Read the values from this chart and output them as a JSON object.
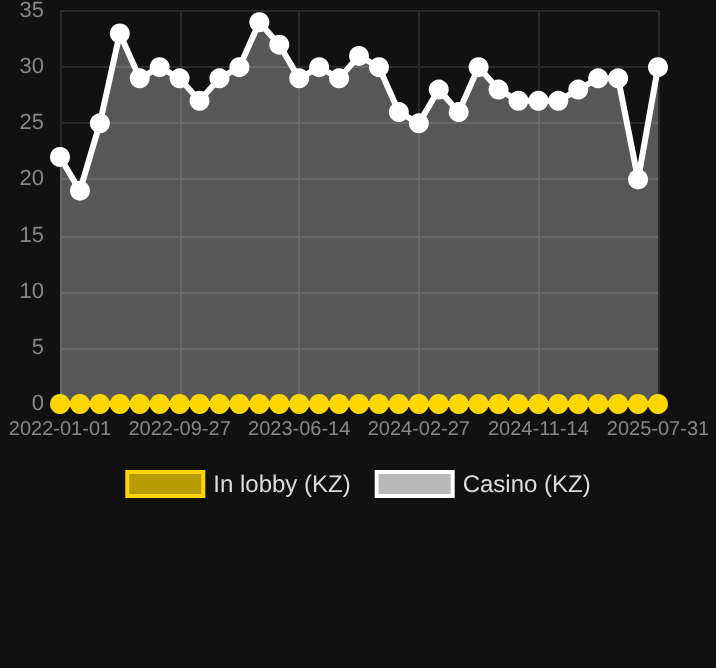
{
  "chart_data": {
    "type": "area",
    "categories": [
      "2022-01-01",
      null,
      null,
      null,
      null,
      null,
      "2022-09-27",
      null,
      null,
      null,
      null,
      null,
      "2023-06-14",
      null,
      null,
      null,
      null,
      null,
      "2024-02-27",
      null,
      null,
      null,
      null,
      null,
      "2024-11-14",
      null,
      null,
      null,
      null,
      null,
      "2025-07-31"
    ],
    "series": [
      {
        "name": "In lobby (KZ)",
        "type": "line",
        "color": "#ffd700",
        "values": [
          0,
          0,
          0,
          0,
          0,
          0,
          0,
          0,
          0,
          0,
          0,
          0,
          0,
          0,
          0,
          0,
          0,
          0,
          0,
          0,
          0,
          0,
          0,
          0,
          0,
          0,
          0,
          0,
          0,
          0,
          0
        ]
      },
      {
        "name": "Casino (KZ)",
        "color": "#ffffff",
        "values": [
          22,
          19,
          25,
          33,
          29,
          30,
          29,
          27,
          29,
          30,
          34,
          32,
          29,
          30,
          29,
          31,
          30,
          26,
          25,
          28,
          26,
          30,
          28,
          27,
          27,
          27,
          28,
          29,
          29,
          20,
          30
        ]
      }
    ],
    "ylim": [
      0,
      35
    ],
    "yticks": [
      0,
      5,
      10,
      15,
      20,
      25,
      30,
      35
    ],
    "grid": true,
    "legend": "bottom",
    "marker": "circle",
    "line_style": "solid"
  }
}
